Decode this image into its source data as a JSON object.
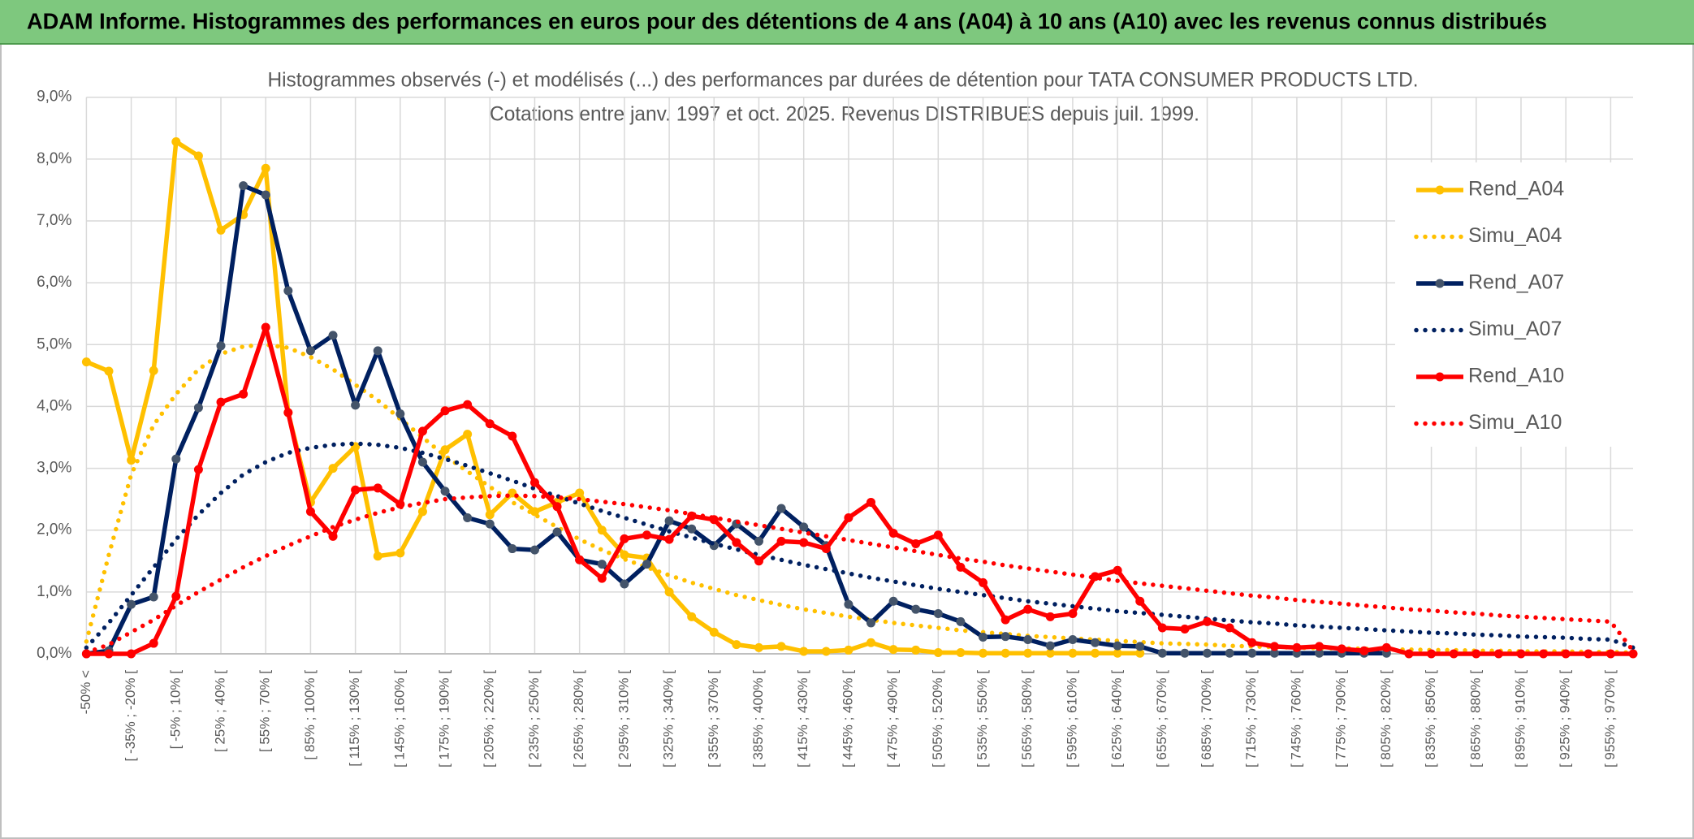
{
  "header": {
    "title": "ADAM Informe. Histogrammes des performances en euros pour des détentions de 4 ans (A04) à 10 ans (A10) avec les revenus connus distribués"
  },
  "chart_data": {
    "type": "line",
    "title": "Histogrammes observés (-) et modélisés (...) des performances par durées de détention pour TATA CONSUMER PRODUCTS LTD.",
    "subtitle": "Cotations entre janv. 1997 et oct. 2025. Revenus DISTRIBUES depuis juil. 1999.",
    "categories": [
      "-50% <",
      null,
      "[ -35% ; -20% [",
      null,
      "[ -5% ; 10% [",
      null,
      "[ 25% ; 40% [",
      null,
      "[ 55% ; 70% [",
      null,
      "[ 85% ; 100% [",
      null,
      "[ 115% ; 130% [",
      null,
      "[ 145% ; 160% [",
      null,
      "[ 175% ; 190% [",
      null,
      "[ 205% ; 220% [",
      null,
      "[ 235% ; 250% [",
      null,
      "[ 265% ; 280% [",
      null,
      "[ 295% ; 310% [",
      null,
      "[ 325% ; 340% [",
      null,
      "[ 355% ; 370% [",
      null,
      "[ 385% ; 400% [",
      null,
      "[ 415% ; 430% [",
      null,
      "[ 445% ; 460% [",
      null,
      "[ 475% ; 490% [",
      null,
      "[ 505% ; 520% [",
      null,
      "[ 535% ; 550% [",
      null,
      "[ 565% ; 580% [",
      null,
      "[ 595% ; 610% [",
      null,
      "[ 625% ; 640% [",
      null,
      "[ 655% ; 670% [",
      null,
      "[ 685% ; 700% [",
      null,
      "[ 715% ; 730% [",
      null,
      "[ 745% ; 760% [",
      null,
      "[ 775% ; 790% [",
      null,
      "[ 805% ; 820% [",
      null,
      "[ 835% ; 850% [",
      null,
      "[ 865% ; 880% [",
      null,
      "[ 895% ; 910% [",
      null,
      "[ 925% ; 940% [",
      null,
      "[ 955% ; 970% [",
      null
    ],
    "series": [
      {
        "name": "Rend_A04",
        "color": "#ffc000",
        "style": "solid",
        "markers": true,
        "values": [
          4.72,
          4.57,
          3.13,
          4.58,
          8.28,
          8.05,
          6.85,
          7.1,
          7.85,
          3.9,
          2.45,
          3.0,
          3.35,
          1.58,
          1.63,
          2.3,
          3.3,
          3.55,
          2.25,
          2.6,
          2.3,
          2.45,
          2.6,
          2.0,
          1.6,
          1.55,
          1.0,
          0.6,
          0.35,
          0.15,
          0.1,
          0.12,
          0.04,
          0.04,
          0.06,
          0.18,
          0.07,
          0.06,
          0.02,
          0.02,
          0.01,
          0.01,
          0.01,
          0.01,
          0.01,
          0.01,
          0.01,
          0.01,
          null,
          null,
          null,
          null,
          null,
          null,
          null,
          null,
          null,
          null,
          null,
          null,
          null,
          null,
          null,
          null,
          null,
          null,
          null,
          null,
          null,
          null
        ]
      },
      {
        "name": "Simu_A04",
        "color": "#ffc000",
        "style": "dotted",
        "markers": false,
        "values": [
          0.2,
          1.6,
          2.9,
          3.7,
          4.2,
          4.6,
          4.85,
          4.97,
          5.0,
          4.95,
          4.8,
          4.6,
          4.35,
          4.1,
          3.8,
          3.5,
          3.2,
          2.95,
          2.7,
          2.45,
          2.25,
          2.05,
          1.85,
          1.68,
          1.53,
          1.4,
          1.27,
          1.15,
          1.05,
          0.95,
          0.87,
          0.79,
          0.72,
          0.66,
          0.6,
          0.55,
          0.5,
          0.46,
          0.42,
          0.38,
          0.35,
          0.32,
          0.29,
          0.27,
          0.25,
          0.23,
          0.21,
          0.19,
          0.17,
          0.16,
          0.15,
          0.13,
          0.12,
          0.11,
          0.1,
          0.09,
          0.09,
          0.08,
          0.07,
          0.07,
          0.06,
          0.06,
          0.05,
          0.05,
          0.04,
          0.04,
          0.04,
          0.03,
          0.03,
          0.02
        ]
      },
      {
        "name": "Rend_A07",
        "color": "#002060",
        "style": "solid",
        "markers": true,
        "values": [
          0,
          0.05,
          0.8,
          0.92,
          3.15,
          3.98,
          4.98,
          7.57,
          7.42,
          5.87,
          4.9,
          5.15,
          4.02,
          4.9,
          3.88,
          3.1,
          2.63,
          2.2,
          2.1,
          1.7,
          1.68,
          1.97,
          1.52,
          1.45,
          1.13,
          1.45,
          2.15,
          2.02,
          1.75,
          2.1,
          1.82,
          2.35,
          2.05,
          1.75,
          0.8,
          0.5,
          0.85,
          0.72,
          0.65,
          0.52,
          0.27,
          0.28,
          0.23,
          0.13,
          0.23,
          0.18,
          0.13,
          0.12,
          0.01,
          0.01,
          0.01,
          0.01,
          0.01,
          0.01,
          0.01,
          0.01,
          0.01,
          0.01,
          0.01,
          null,
          null,
          null,
          null,
          null,
          null,
          null,
          null,
          null,
          null,
          null
        ]
      },
      {
        "name": "Simu_A07",
        "color": "#002060",
        "style": "dotted",
        "markers": false,
        "values": [
          0.1,
          0.5,
          0.95,
          1.4,
          1.85,
          2.25,
          2.6,
          2.9,
          3.1,
          3.25,
          3.33,
          3.38,
          3.4,
          3.38,
          3.33,
          3.25,
          3.15,
          3.04,
          2.92,
          2.8,
          2.67,
          2.55,
          2.43,
          2.31,
          2.2,
          2.09,
          1.98,
          1.88,
          1.78,
          1.69,
          1.6,
          1.52,
          1.44,
          1.37,
          1.3,
          1.23,
          1.17,
          1.11,
          1.05,
          1.0,
          0.95,
          0.9,
          0.85,
          0.81,
          0.77,
          0.73,
          0.69,
          0.66,
          0.63,
          0.6,
          0.57,
          0.54,
          0.51,
          0.49,
          0.46,
          0.44,
          0.42,
          0.4,
          0.38,
          0.36,
          0.34,
          0.33,
          0.31,
          0.3,
          0.28,
          0.27,
          0.26,
          0.24,
          0.23,
          0.1
        ]
      },
      {
        "name": "Rend_A10",
        "color": "#ff0000",
        "style": "solid",
        "markers": true,
        "values": [
          0,
          0,
          0,
          0.17,
          0.93,
          2.98,
          4.07,
          4.2,
          5.28,
          3.9,
          2.3,
          1.9,
          2.65,
          2.68,
          2.42,
          3.6,
          3.93,
          4.03,
          3.72,
          3.52,
          2.77,
          2.38,
          1.52,
          1.22,
          1.86,
          1.92,
          1.85,
          2.23,
          2.17,
          1.8,
          1.5,
          1.82,
          1.8,
          1.7,
          2.2,
          2.45,
          1.95,
          1.78,
          1.92,
          1.4,
          1.15,
          0.55,
          0.72,
          0.6,
          0.65,
          1.25,
          1.35,
          0.85,
          0.42,
          0.4,
          0.52,
          0.42,
          0.18,
          0.12,
          0.1,
          0.12,
          0.08,
          0.05,
          0.1,
          0,
          0,
          0,
          0,
          0,
          0,
          0,
          0,
          0,
          0,
          0
        ]
      },
      {
        "name": "Simu_A10",
        "color": "#ff0000",
        "style": "dotted",
        "markers": false,
        "values": [
          0.02,
          0.15,
          0.35,
          0.55,
          0.78,
          1.0,
          1.2,
          1.4,
          1.58,
          1.75,
          1.9,
          2.05,
          2.17,
          2.28,
          2.37,
          2.44,
          2.5,
          2.53,
          2.55,
          2.56,
          2.55,
          2.53,
          2.5,
          2.46,
          2.42,
          2.37,
          2.32,
          2.26,
          2.2,
          2.14,
          2.08,
          2.02,
          1.96,
          1.9,
          1.84,
          1.78,
          1.72,
          1.66,
          1.6,
          1.54,
          1.49,
          1.43,
          1.38,
          1.33,
          1.28,
          1.23,
          1.18,
          1.14,
          1.1,
          1.06,
          1.02,
          0.98,
          0.94,
          0.91,
          0.87,
          0.84,
          0.81,
          0.78,
          0.75,
          0.72,
          0.7,
          0.67,
          0.65,
          0.62,
          0.6,
          0.58,
          0.56,
          0.54,
          0.52,
          0.05
        ]
      }
    ],
    "ylim": [
      0,
      9
    ],
    "yticks": [
      {
        "value": 0,
        "label": "0,0%"
      },
      {
        "value": 1,
        "label": "1,0%"
      },
      {
        "value": 2,
        "label": "2,0%"
      },
      {
        "value": 3,
        "label": "3,0%"
      },
      {
        "value": 4,
        "label": "4,0%"
      },
      {
        "value": 5,
        "label": "5,0%"
      },
      {
        "value": 6,
        "label": "6,0%"
      },
      {
        "value": 7,
        "label": "7,0%"
      },
      {
        "value": 8,
        "label": "8,0%"
      },
      {
        "value": 9,
        "label": "9,0%"
      }
    ],
    "grid": true,
    "legend": "upper right"
  }
}
